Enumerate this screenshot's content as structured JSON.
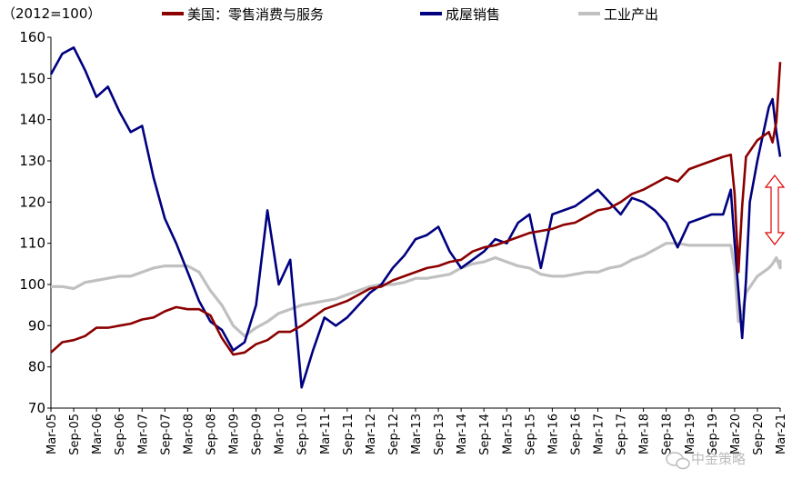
{
  "chart_data": {
    "type": "line",
    "unit_label": "（2012=100）",
    "ylim": [
      70,
      160
    ],
    "yticks": [
      70,
      80,
      90,
      100,
      110,
      120,
      130,
      140,
      150,
      160
    ],
    "xlim": [
      "2005-03",
      "2021-03"
    ],
    "xtick_labels": [
      "Mar-05",
      "Sep-05",
      "Mar-06",
      "Sep-06",
      "Mar-07",
      "Sep-07",
      "Mar-08",
      "Sep-08",
      "Mar-09",
      "Sep-09",
      "Mar-10",
      "Sep-10",
      "Mar-11",
      "Sep-11",
      "Mar-12",
      "Sep-12",
      "Mar-13",
      "Sep-13",
      "Mar-14",
      "Sep-14",
      "Mar-15",
      "Sep-15",
      "Mar-16",
      "Sep-16",
      "Mar-17",
      "Sep-17",
      "Mar-18",
      "Sep-18",
      "Mar-19",
      "Sep-19",
      "Mar-20",
      "Sep-20",
      "Mar-21"
    ],
    "grid": false,
    "legend_position": "top",
    "annotation": "double-arrow-red",
    "watermark": "中金策略",
    "series": [
      {
        "name": "美国：零售消费与服务",
        "color": "#8b0000",
        "points": [
          [
            "2005-03",
            83.5
          ],
          [
            "2005-06",
            86
          ],
          [
            "2005-09",
            86.5
          ],
          [
            "2005-12",
            87.5
          ],
          [
            "2006-03",
            89.5
          ],
          [
            "2006-06",
            89.5
          ],
          [
            "2006-09",
            90
          ],
          [
            "2006-12",
            90.5
          ],
          [
            "2007-03",
            91.5
          ],
          [
            "2007-06",
            92
          ],
          [
            "2007-09",
            93.5
          ],
          [
            "2007-12",
            94.5
          ],
          [
            "2008-03",
            94
          ],
          [
            "2008-06",
            94
          ],
          [
            "2008-09",
            92.5
          ],
          [
            "2008-12",
            87
          ],
          [
            "2009-03",
            83
          ],
          [
            "2009-06",
            83.5
          ],
          [
            "2009-09",
            85.5
          ],
          [
            "2009-12",
            86.5
          ],
          [
            "2010-03",
            88.5
          ],
          [
            "2010-06",
            88.5
          ],
          [
            "2010-09",
            90
          ],
          [
            "2010-12",
            92
          ],
          [
            "2011-03",
            94
          ],
          [
            "2011-06",
            95
          ],
          [
            "2011-09",
            96
          ],
          [
            "2011-12",
            97.5
          ],
          [
            "2012-03",
            99
          ],
          [
            "2012-06",
            99.5
          ],
          [
            "2012-09",
            101
          ],
          [
            "2012-12",
            102
          ],
          [
            "2013-03",
            103
          ],
          [
            "2013-06",
            104
          ],
          [
            "2013-09",
            104.5
          ],
          [
            "2013-12",
            105.5
          ],
          [
            "2014-03",
            106
          ],
          [
            "2014-06",
            108
          ],
          [
            "2014-09",
            109
          ],
          [
            "2014-12",
            109.5
          ],
          [
            "2015-03",
            110.5
          ],
          [
            "2015-06",
            111.5
          ],
          [
            "2015-09",
            112.5
          ],
          [
            "2015-12",
            113
          ],
          [
            "2016-03",
            113.5
          ],
          [
            "2016-06",
            114.5
          ],
          [
            "2016-09",
            115
          ],
          [
            "2016-12",
            116.5
          ],
          [
            "2017-03",
            118
          ],
          [
            "2017-06",
            118.5
          ],
          [
            "2017-09",
            120
          ],
          [
            "2017-12",
            122
          ],
          [
            "2018-03",
            123
          ],
          [
            "2018-06",
            124.5
          ],
          [
            "2018-09",
            126
          ],
          [
            "2018-12",
            125
          ],
          [
            "2019-03",
            128
          ],
          [
            "2019-06",
            129
          ],
          [
            "2019-09",
            130
          ],
          [
            "2019-12",
            131
          ],
          [
            "2020-02",
            131.5
          ],
          [
            "2020-03",
            122
          ],
          [
            "2020-04",
            103
          ],
          [
            "2020-05",
            119
          ],
          [
            "2020-06",
            131
          ],
          [
            "2020-09",
            135
          ],
          [
            "2020-12",
            137
          ],
          [
            "2021-01",
            134.5
          ],
          [
            "2021-02",
            139.5
          ],
          [
            "2021-03",
            154
          ]
        ]
      },
      {
        "name": "成屋销售",
        "color": "#000080",
        "points": [
          [
            "2005-03",
            151
          ],
          [
            "2005-06",
            156
          ],
          [
            "2005-09",
            157.5
          ],
          [
            "2005-12",
            152
          ],
          [
            "2006-03",
            145.5
          ],
          [
            "2006-06",
            148
          ],
          [
            "2006-09",
            142
          ],
          [
            "2006-12",
            137
          ],
          [
            "2007-03",
            138.5
          ],
          [
            "2007-06",
            126
          ],
          [
            "2007-09",
            116
          ],
          [
            "2007-12",
            110
          ],
          [
            "2008-03",
            103
          ],
          [
            "2008-06",
            96
          ],
          [
            "2008-09",
            91
          ],
          [
            "2008-12",
            89
          ],
          [
            "2009-03",
            84
          ],
          [
            "2009-06",
            86
          ],
          [
            "2009-09",
            95
          ],
          [
            "2009-12",
            118
          ],
          [
            "2010-03",
            100
          ],
          [
            "2010-06",
            106
          ],
          [
            "2010-09",
            75
          ],
          [
            "2010-12",
            84
          ],
          [
            "2011-03",
            92
          ],
          [
            "2011-06",
            90
          ],
          [
            "2011-09",
            92
          ],
          [
            "2011-12",
            95
          ],
          [
            "2012-03",
            98
          ],
          [
            "2012-06",
            100
          ],
          [
            "2012-09",
            104
          ],
          [
            "2012-12",
            107
          ],
          [
            "2013-03",
            111
          ],
          [
            "2013-06",
            112
          ],
          [
            "2013-09",
            114
          ],
          [
            "2013-12",
            108
          ],
          [
            "2014-03",
            104
          ],
          [
            "2014-06",
            106
          ],
          [
            "2014-09",
            108
          ],
          [
            "2014-12",
            111
          ],
          [
            "2015-03",
            110
          ],
          [
            "2015-06",
            115
          ],
          [
            "2015-09",
            117
          ],
          [
            "2015-12",
            104
          ],
          [
            "2016-03",
            117
          ],
          [
            "2016-06",
            118
          ],
          [
            "2016-09",
            119
          ],
          [
            "2016-12",
            121
          ],
          [
            "2017-03",
            123
          ],
          [
            "2017-06",
            120
          ],
          [
            "2017-09",
            117
          ],
          [
            "2017-12",
            121
          ],
          [
            "2018-03",
            120
          ],
          [
            "2018-06",
            118
          ],
          [
            "2018-09",
            115
          ],
          [
            "2018-12",
            109
          ],
          [
            "2019-03",
            115
          ],
          [
            "2019-06",
            116
          ],
          [
            "2019-09",
            117
          ],
          [
            "2019-12",
            117
          ],
          [
            "2020-02",
            123
          ],
          [
            "2020-03",
            110
          ],
          [
            "2020-05",
            87
          ],
          [
            "2020-06",
            101
          ],
          [
            "2020-07",
            120
          ],
          [
            "2020-09",
            130
          ],
          [
            "2020-12",
            143
          ],
          [
            "2021-01",
            145
          ],
          [
            "2021-02",
            137
          ],
          [
            "2021-03",
            131
          ]
        ]
      },
      {
        "name": "工业产出",
        "color": "#c0c0c0",
        "points": [
          [
            "2005-03",
            99.5
          ],
          [
            "2005-06",
            99.5
          ],
          [
            "2005-09",
            99
          ],
          [
            "2005-12",
            100.5
          ],
          [
            "2006-03",
            101
          ],
          [
            "2006-06",
            101.5
          ],
          [
            "2006-09",
            102
          ],
          [
            "2006-12",
            102
          ],
          [
            "2007-03",
            103
          ],
          [
            "2007-06",
            104
          ],
          [
            "2007-09",
            104.5
          ],
          [
            "2007-12",
            104.5
          ],
          [
            "2008-03",
            104.5
          ],
          [
            "2008-06",
            103
          ],
          [
            "2008-09",
            98.5
          ],
          [
            "2008-12",
            95
          ],
          [
            "2009-03",
            90
          ],
          [
            "2009-06",
            87.5
          ],
          [
            "2009-09",
            89.5
          ],
          [
            "2009-12",
            91
          ],
          [
            "2010-03",
            93
          ],
          [
            "2010-06",
            94
          ],
          [
            "2010-09",
            95
          ],
          [
            "2010-12",
            95.5
          ],
          [
            "2011-03",
            96
          ],
          [
            "2011-06",
            96.5
          ],
          [
            "2011-09",
            97.5
          ],
          [
            "2011-12",
            98.5
          ],
          [
            "2012-03",
            99.5
          ],
          [
            "2012-06",
            100
          ],
          [
            "2012-09",
            100
          ],
          [
            "2012-12",
            100.5
          ],
          [
            "2013-03",
            101.5
          ],
          [
            "2013-06",
            101.5
          ],
          [
            "2013-09",
            102
          ],
          [
            "2013-12",
            102.5
          ],
          [
            "2014-03",
            104
          ],
          [
            "2014-06",
            105
          ],
          [
            "2014-09",
            105.5
          ],
          [
            "2014-12",
            106.5
          ],
          [
            "2015-03",
            105.5
          ],
          [
            "2015-06",
            104.5
          ],
          [
            "2015-09",
            104
          ],
          [
            "2015-12",
            102.5
          ],
          [
            "2016-03",
            102
          ],
          [
            "2016-06",
            102
          ],
          [
            "2016-09",
            102.5
          ],
          [
            "2016-12",
            103
          ],
          [
            "2017-03",
            103
          ],
          [
            "2017-06",
            104
          ],
          [
            "2017-09",
            104.5
          ],
          [
            "2017-12",
            106
          ],
          [
            "2018-03",
            107
          ],
          [
            "2018-06",
            108.5
          ],
          [
            "2018-09",
            110
          ],
          [
            "2018-12",
            110
          ],
          [
            "2019-03",
            109.5
          ],
          [
            "2019-06",
            109.5
          ],
          [
            "2019-09",
            109.5
          ],
          [
            "2019-12",
            109.5
          ],
          [
            "2020-02",
            109.5
          ],
          [
            "2020-03",
            104
          ],
          [
            "2020-04",
            91
          ],
          [
            "2020-05",
            93
          ],
          [
            "2020-06",
            98
          ],
          [
            "2020-09",
            102
          ],
          [
            "2020-12",
            104
          ],
          [
            "2021-01",
            105
          ],
          [
            "2021-02",
            106.5
          ],
          [
            "2021-03",
            104
          ],
          [
            "2021-03",
            106
          ]
        ]
      }
    ]
  }
}
